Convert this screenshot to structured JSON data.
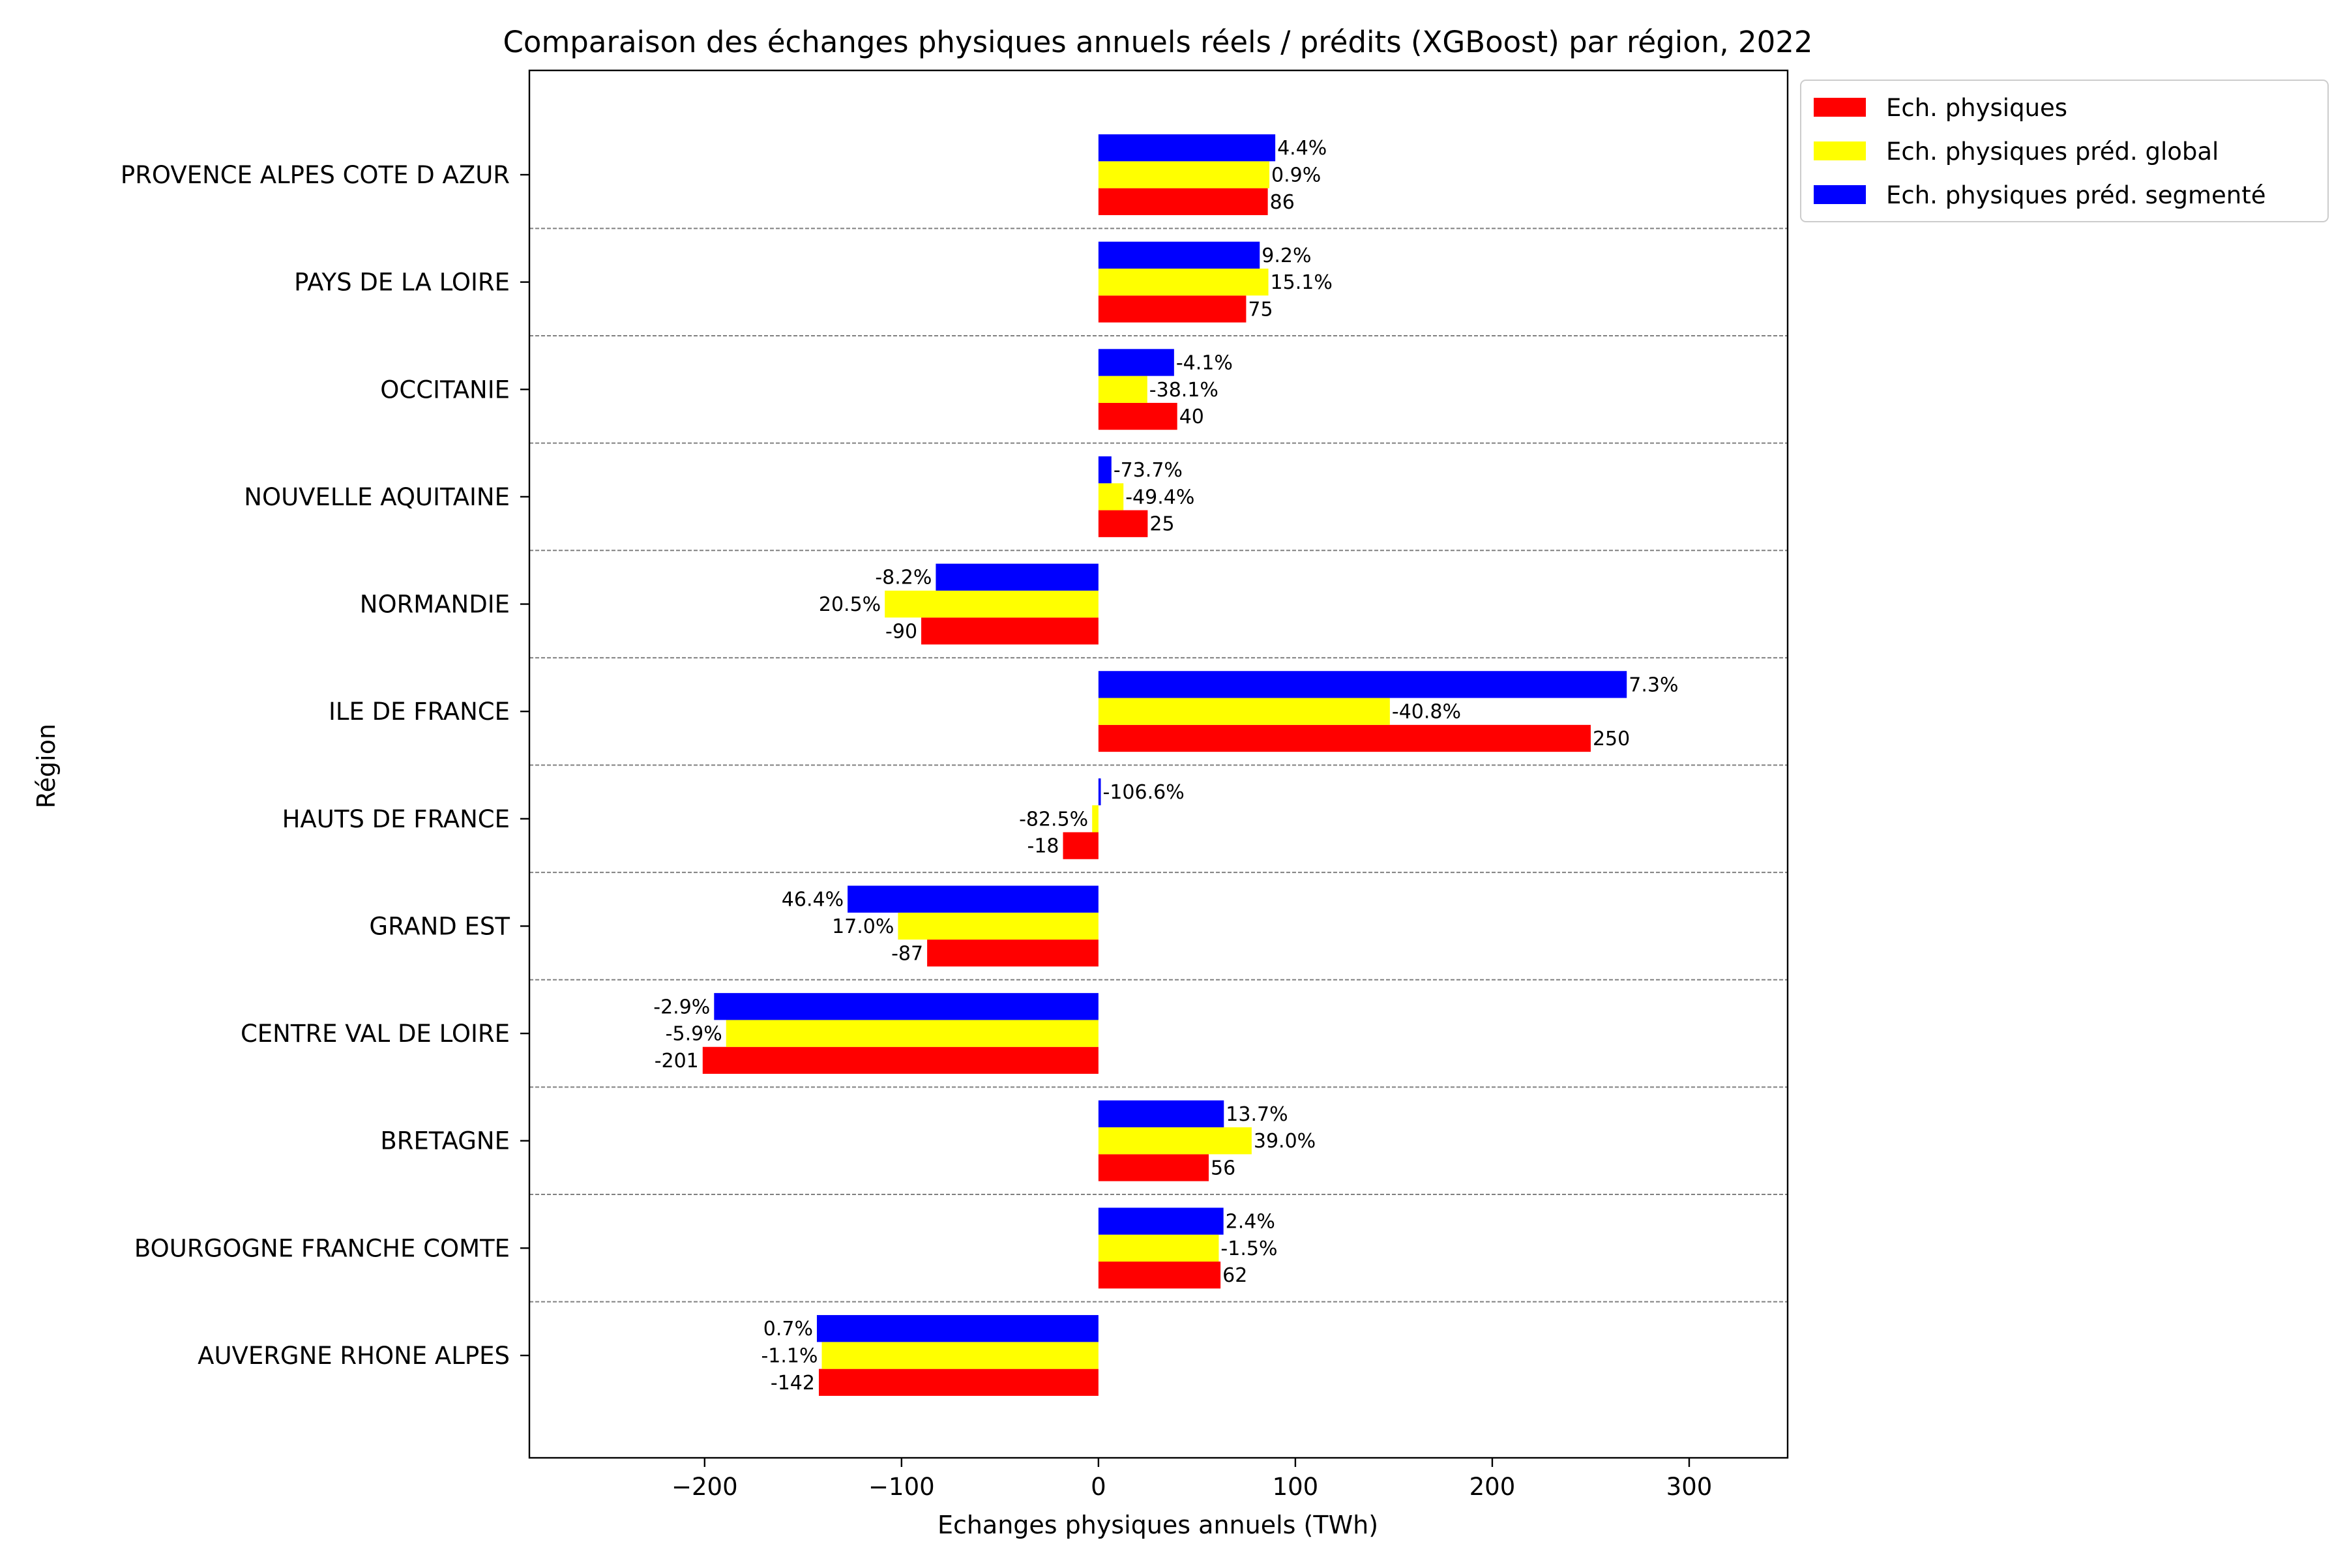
{
  "chart_data": {
    "type": "bar",
    "orientation": "horizontal",
    "title": "Comparaison des échanges physiques annuels réels / prédits (XGBoost) par région, 2022",
    "xlabel": "Echanges physiques annuels (TWh)",
    "ylabel": "Région",
    "xlim": [
      -289,
      350
    ],
    "xticks": [
      -200,
      -100,
      0,
      100,
      200,
      300
    ],
    "xtick_labels": [
      "−200",
      "−100",
      "0",
      "100",
      "200",
      "300"
    ],
    "categories": [
      "AUVERGNE RHONE ALPES",
      "BOURGOGNE FRANCHE COMTE",
      "BRETAGNE",
      "CENTRE VAL DE LOIRE",
      "GRAND EST",
      "HAUTS DE FRANCE",
      "ILE DE FRANCE",
      "NORMANDIE",
      "NOUVELLE AQUITAINE",
      "OCCITANIE",
      "PAYS DE LA LOIRE",
      "PROVENCE ALPES COTE D AZUR"
    ],
    "series": [
      {
        "name": "Ech. physiques",
        "color": "#ff0000",
        "values": [
          -142,
          62,
          56,
          -201,
          -87,
          -18,
          250,
          -90,
          25,
          40,
          75,
          86
        ],
        "labels": [
          "-142",
          "62",
          "56",
          "-201",
          "-87",
          "-18",
          "250",
          "-90",
          "25",
          "40",
          "75",
          "86"
        ]
      },
      {
        "name": "Ech. physiques préd. global",
        "color": "#ffff00",
        "values": [
          -140.5,
          61.1,
          77.8,
          -189.1,
          -101.8,
          -3.2,
          148,
          -108.5,
          12.7,
          24.8,
          86.3,
          86.8
        ],
        "labels": [
          "-1.1%",
          "-1.5%",
          "39.0%",
          "-5.9%",
          "17.0%",
          "-82.5%",
          "-40.8%",
          "20.5%",
          "-49.4%",
          "-38.1%",
          "15.1%",
          "0.9%"
        ]
      },
      {
        "name": "Ech. physiques préd. segmenté",
        "color": "#0000ff",
        "values": [
          -143,
          63.5,
          63.7,
          -195.2,
          -127.4,
          1.2,
          268.3,
          -82.6,
          6.6,
          38.4,
          81.9,
          89.8
        ],
        "labels": [
          "0.7%",
          "2.4%",
          "13.7%",
          "-2.9%",
          "46.4%",
          "-106.6%",
          "7.3%",
          "-8.2%",
          "-73.7%",
          "-4.1%",
          "9.2%",
          "4.4%"
        ]
      }
    ],
    "legend_position": "outside-top-right",
    "separator_lines": "dashed-gray-between-categories"
  }
}
